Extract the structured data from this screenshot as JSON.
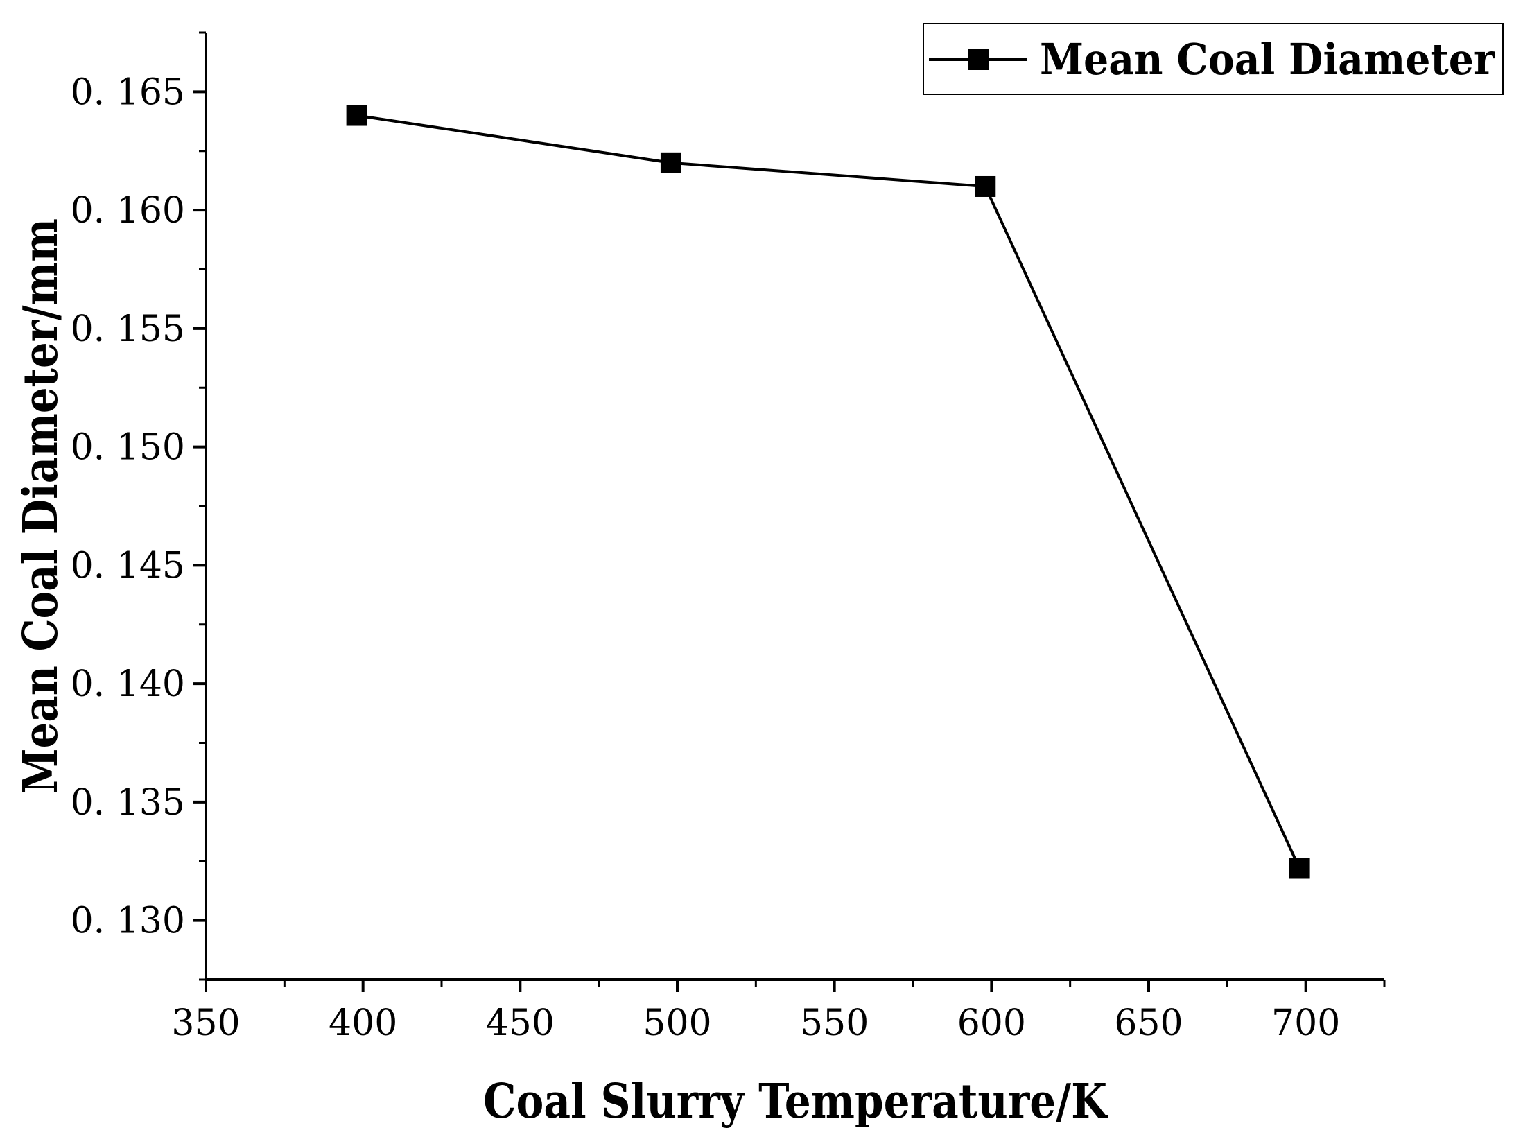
{
  "chart_data": {
    "type": "line",
    "title": "",
    "xlabel": "Coal Slurry Temperature/K",
    "ylabel": "Mean Coal Diameter/mm",
    "xlim": [
      350,
      725
    ],
    "ylim": [
      0.1275,
      0.1675
    ],
    "x_ticks": [
      350,
      400,
      450,
      500,
      550,
      600,
      650,
      700
    ],
    "x_tick_labels": [
      "350",
      "400",
      "450",
      "500",
      "550",
      "600",
      "650",
      "700"
    ],
    "y_ticks": [
      0.13,
      0.135,
      0.14,
      0.145,
      0.15,
      0.155,
      0.16,
      0.165
    ],
    "y_tick_labels": [
      "0. 130",
      "0. 135",
      "0. 140",
      "0. 145",
      "0. 150",
      "0. 155",
      "0. 160",
      "0. 165"
    ],
    "grid": false,
    "legend_position": "top-right",
    "series": [
      {
        "name": "Mean Coal Diameter",
        "x": [
          398,
          498,
          598,
          698
        ],
        "values": [
          0.164,
          0.162,
          0.161,
          0.1322
        ],
        "color": "#000000",
        "marker": "square"
      }
    ]
  }
}
